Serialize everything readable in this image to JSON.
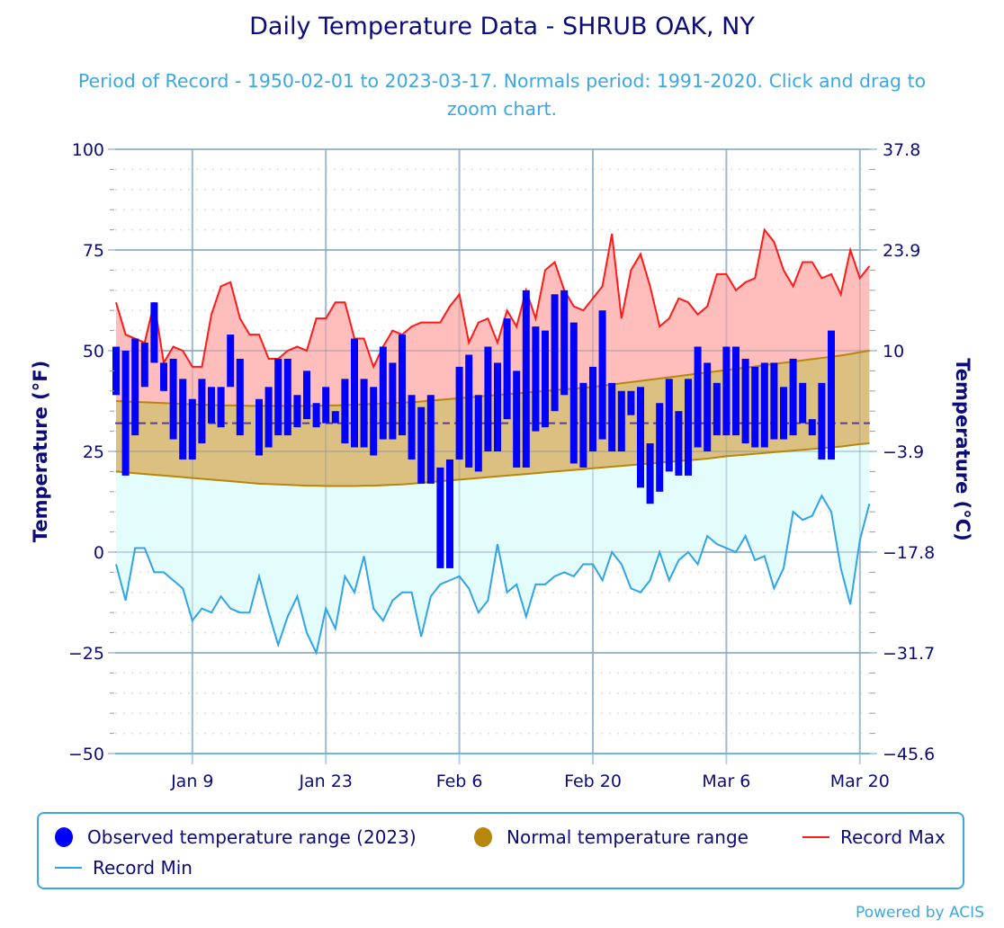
{
  "header": {
    "title": "Daily Temperature Data - SHRUB OAK, NY",
    "subtitle": "Period of Record - 1950-02-01 to 2023-03-17. Normals period: 1991-2020. Click and drag to zoom chart."
  },
  "legend": {
    "items": [
      {
        "label": "Observed temperature range (2023)",
        "color": "#0000ff",
        "symbol": "circle"
      },
      {
        "label": "Normal temperature range",
        "color": "#b8860b",
        "symbol": "circle"
      },
      {
        "label": "Record Max",
        "color": "#ff1a1a",
        "symbol": "line"
      },
      {
        "label": "Record Min",
        "color": "#2fa4e7",
        "symbol": "line"
      }
    ]
  },
  "footer": {
    "credit": "Powered by ACIS"
  },
  "colors": {
    "observed": "#0000ff",
    "normal_fill": "#dbc081",
    "normal_line": "#b8860b",
    "record_max_line": "#ff1a1a",
    "record_max_fill": "#ffbdbb",
    "record_min_line": "#2fa4e7",
    "record_min_fill": "#e3fdfd",
    "freezing_line": "#5a3d8c",
    "grid": "#b0d0e8",
    "text": "#0b0b7a"
  },
  "chart_data": {
    "type": "bar",
    "title": "Daily Temperature Data - SHRUB OAK, NY",
    "subtitle": "Period of Record - 1950-02-01 to 2023-03-17. Normals period: 1991-2020. Click and drag to zoom chart.",
    "xlabel": "",
    "ylabel": "Temperature (°F)",
    "ylabel_right": "Temperature (°C)",
    "ylim": [
      -50,
      100
    ],
    "yticks": [
      100,
      75,
      50,
      25,
      0,
      -25,
      -50
    ],
    "yticks_right": [
      "37.8",
      "23.9",
      "10",
      "-3.9",
      "-17.8",
      "-31.7",
      "-45.6"
    ],
    "x_start": "Jan 1",
    "x_day_count": 80,
    "xticks": [
      {
        "label": "Jan 9",
        "day": 8
      },
      {
        "label": "Jan 23",
        "day": 22
      },
      {
        "label": "Feb 6",
        "day": 36
      },
      {
        "label": "Feb 20",
        "day": 50
      },
      {
        "label": "Mar 6",
        "day": 64
      },
      {
        "label": "Mar 20",
        "day": 78
      }
    ],
    "freezing_line": 32,
    "grid": true,
    "legend_position": "bottom",
    "series": [
      {
        "name": "Observed temperature range (2023)",
        "type": "columnrange",
        "data": [
          [
            0,
            39,
            51
          ],
          [
            1,
            19,
            50
          ],
          [
            2,
            29,
            53
          ],
          [
            3,
            41,
            52
          ],
          [
            4,
            47,
            62
          ],
          [
            5,
            40,
            47
          ],
          [
            6,
            28,
            48
          ],
          [
            7,
            23,
            43
          ],
          [
            8,
            23,
            38
          ],
          [
            9,
            27,
            43
          ],
          [
            10,
            32,
            41
          ],
          [
            11,
            31,
            41
          ],
          [
            12,
            41,
            54
          ],
          [
            13,
            29,
            48
          ],
          [
            15,
            24,
            38
          ],
          [
            16,
            26,
            41
          ],
          [
            17,
            29,
            48
          ],
          [
            18,
            29,
            48
          ],
          [
            19,
            31,
            39
          ],
          [
            20,
            33,
            45
          ],
          [
            21,
            31,
            37
          ],
          [
            22,
            32,
            41
          ],
          [
            23,
            32,
            35
          ],
          [
            24,
            27,
            43
          ],
          [
            25,
            26,
            53
          ],
          [
            26,
            26,
            43
          ],
          [
            27,
            24,
            41
          ],
          [
            28,
            28,
            51
          ],
          [
            29,
            28,
            47
          ],
          [
            30,
            29,
            54
          ],
          [
            31,
            23,
            39
          ],
          [
            32,
            17,
            36
          ],
          [
            33,
            17,
            39
          ],
          [
            34,
            -4,
            21
          ],
          [
            35,
            -4,
            23
          ],
          [
            36,
            23,
            46
          ],
          [
            37,
            21,
            49
          ],
          [
            38,
            20,
            39
          ],
          [
            39,
            25,
            51
          ],
          [
            40,
            25,
            47
          ],
          [
            41,
            33,
            58
          ],
          [
            42,
            21,
            45
          ],
          [
            43,
            21,
            65
          ],
          [
            44,
            30,
            56
          ],
          [
            45,
            31,
            55
          ],
          [
            46,
            35,
            64
          ],
          [
            47,
            39,
            65
          ],
          [
            48,
            22,
            57
          ],
          [
            49,
            21,
            42
          ],
          [
            50,
            25,
            46
          ],
          [
            51,
            28,
            60
          ],
          [
            52,
            25,
            42
          ],
          [
            53,
            25,
            40
          ],
          [
            54,
            34,
            40
          ],
          [
            55,
            16,
            41
          ],
          [
            56,
            12,
            27
          ],
          [
            57,
            15,
            37
          ],
          [
            58,
            20,
            43
          ],
          [
            59,
            19,
            35
          ],
          [
            60,
            19,
            43
          ],
          [
            61,
            26,
            51
          ],
          [
            62,
            25,
            47
          ],
          [
            63,
            29,
            42
          ],
          [
            64,
            29,
            51
          ],
          [
            65,
            29,
            51
          ],
          [
            66,
            27,
            48
          ],
          [
            67,
            26,
            46
          ],
          [
            68,
            26,
            47
          ],
          [
            69,
            28,
            47
          ],
          [
            70,
            28,
            41
          ],
          [
            71,
            29,
            48
          ],
          [
            72,
            32,
            42
          ],
          [
            73,
            29,
            33
          ],
          [
            74,
            23,
            42
          ],
          [
            75,
            23,
            55
          ]
        ]
      },
      {
        "name": "Normal temperature range",
        "type": "arearange",
        "low": [
          20,
          19.8,
          19.6,
          19.4,
          19.2,
          19,
          18.8,
          18.6,
          18.4,
          18.2,
          18,
          17.8,
          17.6,
          17.4,
          17.2,
          17,
          16.9,
          16.8,
          16.7,
          16.6,
          16.5,
          16.5,
          16.4,
          16.4,
          16.4,
          16.4,
          16.5,
          16.5,
          16.6,
          16.7,
          16.8,
          17,
          17.2,
          17.4,
          17.6,
          17.8,
          18,
          18.2,
          18.4,
          18.6,
          18.8,
          19,
          19.2,
          19.4,
          19.6,
          19.8,
          20,
          20.2,
          20.4,
          20.6,
          20.8,
          21,
          21.2,
          21.4,
          21.6,
          21.8,
          22,
          22.2,
          22.4,
          22.6,
          22.8,
          23,
          23.2,
          23.5,
          23.8,
          24,
          24.2,
          24.4,
          24.6,
          24.8,
          25,
          25.2,
          25.4,
          25.6,
          25.8,
          26,
          26.2,
          26.5,
          26.8,
          27
        ],
        "high": [
          37.5,
          37.4,
          37.3,
          37.2,
          37.1,
          37,
          36.9,
          36.8,
          36.7,
          36.6,
          36.5,
          36.4,
          36.4,
          36.4,
          36.3,
          36.3,
          36.3,
          36.3,
          36.3,
          36.3,
          36.3,
          36.3,
          36.4,
          36.4,
          36.5,
          36.6,
          36.7,
          36.8,
          36.9,
          37,
          37.1,
          37.2,
          37.4,
          37.6,
          37.8,
          38,
          38.2,
          38.4,
          38.6,
          38.8,
          39,
          39.2,
          39.4,
          39.6,
          39.8,
          40,
          40.2,
          40.4,
          40.6,
          40.8,
          41,
          41.3,
          41.6,
          41.9,
          42.2,
          42.5,
          42.8,
          43.1,
          43.4,
          43.7,
          44,
          44.3,
          44.6,
          44.9,
          45.2,
          45.5,
          45.8,
          46.1,
          46.4,
          46.7,
          47,
          47.3,
          47.6,
          47.9,
          48.2,
          48.5,
          48.8,
          49.2,
          49.6,
          50
        ]
      },
      {
        "name": "Record Max",
        "type": "line",
        "values": [
          62,
          54,
          53,
          52,
          62,
          47,
          51,
          50,
          46,
          46,
          59,
          66,
          67,
          58,
          54,
          54,
          48,
          48,
          50,
          51,
          50,
          58,
          58,
          62,
          62,
          53,
          53,
          46,
          51,
          55,
          54,
          56,
          57,
          57,
          57,
          61,
          64,
          52,
          57,
          58,
          52,
          60,
          56,
          65,
          58,
          70,
          72,
          65,
          61,
          60,
          63,
          66,
          79,
          58,
          70,
          74,
          66,
          56,
          58,
          63,
          62,
          59,
          61,
          69,
          69,
          65,
          67,
          68,
          80,
          77,
          70,
          66,
          72,
          72,
          68,
          69,
          64,
          75,
          68,
          71
        ]
      },
      {
        "name": "Record Min",
        "type": "line",
        "values": [
          -3,
          -12,
          1,
          1,
          -5,
          -5,
          -7,
          -9,
          -17,
          -14,
          -15,
          -11,
          -14,
          -15,
          -15,
          -6,
          -15,
          -23,
          -16,
          -11,
          -20,
          -25,
          -14,
          -19,
          -6,
          -10,
          -1,
          -14,
          -17,
          -12,
          -10,
          -10,
          -21,
          -11,
          -8,
          -7,
          -6,
          -9,
          -15,
          -12,
          2,
          -10,
          -8,
          -16,
          -8,
          -8,
          -6,
          -5,
          -6,
          -3,
          -3,
          -7,
          0,
          -3,
          -9,
          -10,
          -7,
          0,
          -7,
          -2,
          0,
          -3,
          4,
          2,
          1,
          0,
          4,
          -2,
          -1,
          -9,
          -4,
          10,
          8,
          9,
          14,
          10,
          -4,
          -13,
          3,
          12
        ]
      }
    ]
  }
}
